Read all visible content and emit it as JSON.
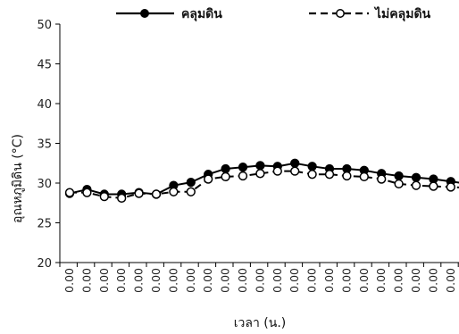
{
  "chart_data": {
    "type": "line",
    "title": "",
    "xlabel": "เวลา (น.)",
    "ylabel": "อุณหภูมิดิน (°C)",
    "ylim": [
      20,
      50
    ],
    "yticks": [
      20,
      25,
      30,
      35,
      40,
      45,
      50
    ],
    "grid": false,
    "legend": "top",
    "categories": [
      "0.00",
      "0.00",
      "0.00",
      "0.00",
      "0.00",
      "0.00",
      "0.00",
      "0.00",
      "0.00",
      "0.00",
      "0.00",
      "0.00",
      "0.00",
      "0.00",
      "0.00",
      "0.00",
      "0.00",
      "0.00",
      "0.00",
      "0.00",
      "0.00",
      "0.00",
      "0.00",
      "0.00"
    ],
    "series": [
      {
        "name": "คลุมดิน",
        "color": "#000000",
        "line": "solid",
        "marker": "filled-circle",
        "values": [
          28.7,
          29.2,
          28.6,
          28.6,
          28.8,
          28.6,
          29.7,
          30.1,
          31.1,
          31.8,
          32.0,
          32.2,
          32.1,
          32.5,
          32.1,
          31.8,
          31.8,
          31.6,
          31.2,
          30.9,
          30.7,
          30.5,
          30.2,
          29.9
        ]
      },
      {
        "name": "ไม่คลุมดิน",
        "color": "#000000",
        "line": "dashed",
        "marker": "open-circle",
        "values": [
          28.8,
          28.8,
          28.3,
          28.1,
          28.7,
          28.6,
          28.9,
          28.9,
          30.5,
          30.8,
          30.9,
          31.2,
          31.5,
          31.5,
          31.1,
          31.1,
          30.9,
          30.8,
          30.5,
          29.9,
          29.7,
          29.6,
          29.5,
          29.4
        ]
      }
    ]
  }
}
